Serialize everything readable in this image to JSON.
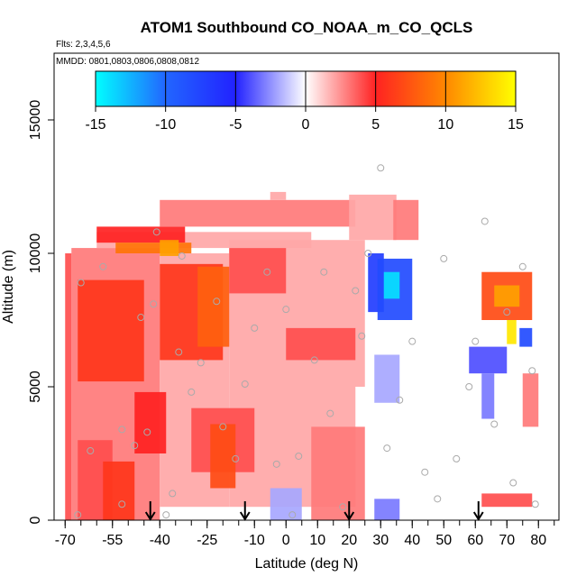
{
  "chart_data": {
    "type": "heatmap",
    "title": "ATOM1 Southbound CO_NOAA_m_CO_QCLS",
    "flights_label": "Flts: 2,3,4,5,6",
    "dates_label": "MMDD: 0801,0803,0806,0808,0812",
    "xlabel": "Latitude (deg N)",
    "ylabel": "Altitude (m)",
    "xlim": [
      -70,
      85
    ],
    "ylim": [
      0,
      17500
    ],
    "x_ticks": [
      -70,
      -55,
      -40,
      -25,
      -10,
      0,
      10,
      20,
      30,
      40,
      50,
      60,
      70,
      80
    ],
    "y_ticks": [
      0,
      5000,
      10000,
      15000
    ],
    "colorbar": {
      "range": [
        -15,
        15
      ],
      "ticks": [
        -15,
        -10,
        -5,
        0,
        5,
        10,
        15
      ],
      "colors": [
        "#00ffff",
        "#2266ff",
        "#2222ff",
        "#ffffff",
        "#ff2222",
        "#ff8800",
        "#ffff00"
      ]
    },
    "regions": [
      {
        "lat": [
          -68,
          -40
        ],
        "alt": [
          0,
          10200
        ],
        "value": 3
      },
      {
        "lat": [
          -40,
          -18
        ],
        "alt": [
          500,
          10000
        ],
        "value": 2
      },
      {
        "lat": [
          -18,
          22
        ],
        "alt": [
          500,
          5000
        ],
        "value": 2
      },
      {
        "lat": [
          -18,
          25
        ],
        "alt": [
          5000,
          10500
        ],
        "value": 2
      },
      {
        "lat": [
          -66,
          -55
        ],
        "alt": [
          0,
          3000
        ],
        "value": 4
      },
      {
        "lat": [
          -58,
          -48
        ],
        "alt": [
          0,
          2200
        ],
        "value": 6
      },
      {
        "lat": [
          -66,
          -45
        ],
        "alt": [
          5200,
          9000
        ],
        "value": 6
      },
      {
        "lat": [
          -48,
          -38
        ],
        "alt": [
          2500,
          4800
        ],
        "value": 5
      },
      {
        "lat": [
          -40,
          -20
        ],
        "alt": [
          6000,
          9600
        ],
        "value": 6
      },
      {
        "lat": [
          -28,
          -18
        ],
        "alt": [
          6500,
          9500
        ],
        "value": 8
      },
      {
        "lat": [
          -18,
          0
        ],
        "alt": [
          8500,
          10200
        ],
        "value": 4
      },
      {
        "lat": [
          -30,
          -10
        ],
        "alt": [
          1800,
          4200
        ],
        "value": 4
      },
      {
        "lat": [
          -24,
          -16
        ],
        "alt": [
          1200,
          3600
        ],
        "value": 7
      },
      {
        "lat": [
          -60,
          8
        ],
        "alt": [
          10200,
          10800
        ],
        "value": 2
      },
      {
        "lat": [
          -60,
          -32
        ],
        "alt": [
          10400,
          11000
        ],
        "value": 5
      },
      {
        "lat": [
          -54,
          -30
        ],
        "alt": [
          10000,
          10400
        ],
        "value": 9
      },
      {
        "lat": [
          -40,
          -34
        ],
        "alt": [
          9900,
          10500
        ],
        "value": 11
      },
      {
        "lat": [
          -40,
          22
        ],
        "alt": [
          11000,
          12000
        ],
        "value": 3
      },
      {
        "lat": [
          -5,
          0
        ],
        "alt": [
          12000,
          12300
        ],
        "value": 2
      },
      {
        "lat": [
          20,
          35
        ],
        "alt": [
          10500,
          12200
        ],
        "value": 2
      },
      {
        "lat": [
          0,
          22
        ],
        "alt": [
          6000,
          7200
        ],
        "value": 4
      },
      {
        "lat": [
          8,
          25
        ],
        "alt": [
          0,
          3500
        ],
        "value": 3
      },
      {
        "lat": [
          -5,
          5
        ],
        "alt": [
          0,
          1200
        ],
        "value": -2
      },
      {
        "lat": [
          28,
          36
        ],
        "alt": [
          0,
          800
        ],
        "value": -3
      },
      {
        "lat": [
          26,
          31
        ],
        "alt": [
          7800,
          10000
        ],
        "value": -7
      },
      {
        "lat": [
          29,
          40
        ],
        "alt": [
          7500,
          9800
        ],
        "value": -8
      },
      {
        "lat": [
          31,
          36
        ],
        "alt": [
          8300,
          9300
        ],
        "value": -14
      },
      {
        "lat": [
          28,
          36
        ],
        "alt": [
          4400,
          6200
        ],
        "value": -2
      },
      {
        "lat": [
          58,
          70
        ],
        "alt": [
          5500,
          6500
        ],
        "value": -4
      },
      {
        "lat": [
          62,
          66
        ],
        "alt": [
          3800,
          5500
        ],
        "value": -3
      },
      {
        "lat": [
          62,
          78
        ],
        "alt": [
          7500,
          9300
        ],
        "value": 7
      },
      {
        "lat": [
          66,
          74
        ],
        "alt": [
          8000,
          8800
        ],
        "value": 11
      },
      {
        "lat": [
          70,
          73
        ],
        "alt": [
          6600,
          7500
        ],
        "value": 14
      },
      {
        "lat": [
          74,
          78
        ],
        "alt": [
          6500,
          7200
        ],
        "value": -8
      },
      {
        "lat": [
          62,
          78
        ],
        "alt": [
          500,
          1000
        ],
        "value": 4
      },
      {
        "lat": [
          75,
          80
        ],
        "alt": [
          3500,
          5500
        ],
        "value": 3
      },
      {
        "lat": [
          34,
          42
        ],
        "alt": [
          10500,
          12000
        ],
        "value": 3
      },
      {
        "lat": [
          -70,
          -68
        ],
        "alt": [
          0,
          10000
        ],
        "value": 4
      }
    ],
    "samples": [
      {
        "lat": -66,
        "alt": 200
      },
      {
        "lat": -62,
        "alt": 2600
      },
      {
        "lat": -65,
        "alt": 8900
      },
      {
        "lat": -58,
        "alt": 9500
      },
      {
        "lat": -52,
        "alt": 600
      },
      {
        "lat": -52,
        "alt": 3400
      },
      {
        "lat": -48,
        "alt": 2800
      },
      {
        "lat": -46,
        "alt": 7600
      },
      {
        "lat": -44,
        "alt": 3300
      },
      {
        "lat": -42,
        "alt": 8100
      },
      {
        "lat": -41,
        "alt": 10800
      },
      {
        "lat": -38,
        "alt": 200
      },
      {
        "lat": -36,
        "alt": 1000
      },
      {
        "lat": -34,
        "alt": 6300
      },
      {
        "lat": -33,
        "alt": 9900
      },
      {
        "lat": -30,
        "alt": 4800
      },
      {
        "lat": -27,
        "alt": 5900
      },
      {
        "lat": -22,
        "alt": 8200
      },
      {
        "lat": -20,
        "alt": 3500
      },
      {
        "lat": -16,
        "alt": 2300
      },
      {
        "lat": -13,
        "alt": 5100
      },
      {
        "lat": -10,
        "alt": 7200
      },
      {
        "lat": -6,
        "alt": 9300
      },
      {
        "lat": -3,
        "alt": 2100
      },
      {
        "lat": 0,
        "alt": 7900
      },
      {
        "lat": 2,
        "alt": 200
      },
      {
        "lat": 4,
        "alt": 2400
      },
      {
        "lat": 9,
        "alt": 6000
      },
      {
        "lat": 12,
        "alt": 9300
      },
      {
        "lat": 14,
        "alt": 4000
      },
      {
        "lat": 18,
        "alt": 500
      },
      {
        "lat": 22,
        "alt": 8600
      },
      {
        "lat": 24,
        "alt": 6900
      },
      {
        "lat": 26,
        "alt": 10000
      },
      {
        "lat": 30,
        "alt": 13200
      },
      {
        "lat": 32,
        "alt": 2700
      },
      {
        "lat": 36,
        "alt": 4500
      },
      {
        "lat": 40,
        "alt": 6700
      },
      {
        "lat": 44,
        "alt": 1800
      },
      {
        "lat": 48,
        "alt": 800
      },
      {
        "lat": 50,
        "alt": 9800
      },
      {
        "lat": 54,
        "alt": 2300
      },
      {
        "lat": 58,
        "alt": 5000
      },
      {
        "lat": 60,
        "alt": 6700
      },
      {
        "lat": 63,
        "alt": 11200
      },
      {
        "lat": 66,
        "alt": 3600
      },
      {
        "lat": 70,
        "alt": 7800
      },
      {
        "lat": 72,
        "alt": 1400
      },
      {
        "lat": 75,
        "alt": 9500
      },
      {
        "lat": 78,
        "alt": 5600
      },
      {
        "lat": 79,
        "alt": 600
      }
    ],
    "arrows": [
      -43,
      -13,
      20,
      61
    ]
  }
}
